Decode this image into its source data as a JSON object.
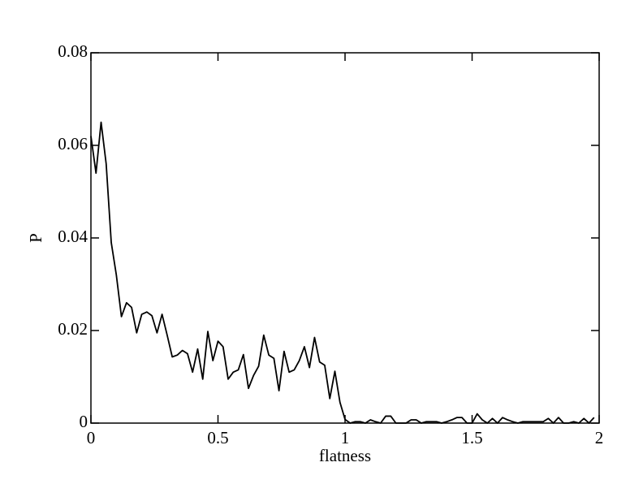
{
  "chart_data": {
    "type": "line",
    "x_label": "flatness",
    "y_label": "P",
    "x": [
      0,
      0.02,
      0.04,
      0.06,
      0.08,
      0.1,
      0.12,
      0.14,
      0.16,
      0.18,
      0.2,
      0.22,
      0.24,
      0.26,
      0.28,
      0.3,
      0.32,
      0.34,
      0.36,
      0.38,
      0.4,
      0.42,
      0.44,
      0.46,
      0.48,
      0.5,
      0.52,
      0.54,
      0.56,
      0.58,
      0.6,
      0.62,
      0.64,
      0.66,
      0.68,
      0.7,
      0.72,
      0.74,
      0.76,
      0.78,
      0.8,
      0.82,
      0.84,
      0.86,
      0.88,
      0.9,
      0.92,
      0.94,
      0.96,
      0.98,
      1,
      1.02,
      1.04,
      1.06,
      1.08,
      1.1,
      1.12,
      1.14,
      1.16,
      1.18,
      1.2,
      1.22,
      1.24,
      1.26,
      1.28,
      1.3,
      1.32,
      1.34,
      1.36,
      1.38,
      1.4,
      1.42,
      1.44,
      1.46,
      1.48,
      1.5,
      1.52,
      1.54,
      1.56,
      1.58,
      1.6,
      1.62,
      1.64,
      1.66,
      1.68,
      1.7,
      1.72,
      1.74,
      1.76,
      1.78,
      1.8,
      1.82,
      1.84,
      1.86,
      1.88,
      1.9,
      1.92,
      1.94,
      1.96,
      1.98
    ],
    "series": [
      {
        "color": "#000000",
        "values": [
          0.062,
          0.054,
          0.065,
          0.056,
          0.039,
          0.032,
          0.023,
          0.026,
          0.025,
          0.0195,
          0.0235,
          0.024,
          0.0232,
          0.0195,
          0.0235,
          0.019,
          0.0143,
          0.0147,
          0.0157,
          0.015,
          0.011,
          0.016,
          0.0095,
          0.0198,
          0.0135,
          0.0177,
          0.0165,
          0.0095,
          0.011,
          0.0115,
          0.0148,
          0.0075,
          0.0103,
          0.0123,
          0.019,
          0.0147,
          0.014,
          0.007,
          0.0155,
          0.011,
          0.0115,
          0.0135,
          0.0165,
          0.012,
          0.0185,
          0.0132,
          0.0125,
          0.0053,
          0.0112,
          0.0045,
          0.0008,
          0,
          0.0003,
          0.0003,
          0,
          0.0007,
          0.0003,
          0,
          0.0015,
          0.0015,
          0,
          0,
          0,
          0.0007,
          0.0007,
          0,
          0.0003,
          0.0003,
          0.0003,
          0,
          0.0003,
          0.0007,
          0.0012,
          0.0012,
          0,
          0,
          0.002,
          0.0007,
          0,
          0.001,
          0,
          0.0012,
          0.0007,
          0.0003,
          0,
          0.0003,
          0.0003,
          0.0003,
          0.0003,
          0.0003,
          0.001,
          0,
          0.0012,
          0,
          0,
          0.0003,
          0,
          0.001,
          0,
          0.0012
        ]
      }
    ],
    "xlim": [
      0,
      2
    ],
    "xticks": [
      0,
      0.5,
      1,
      1.5,
      2
    ],
    "ylim": [
      0,
      0.08
    ],
    "yticks": [
      0,
      0.02,
      0.04,
      0.06,
      0.08
    ]
  }
}
